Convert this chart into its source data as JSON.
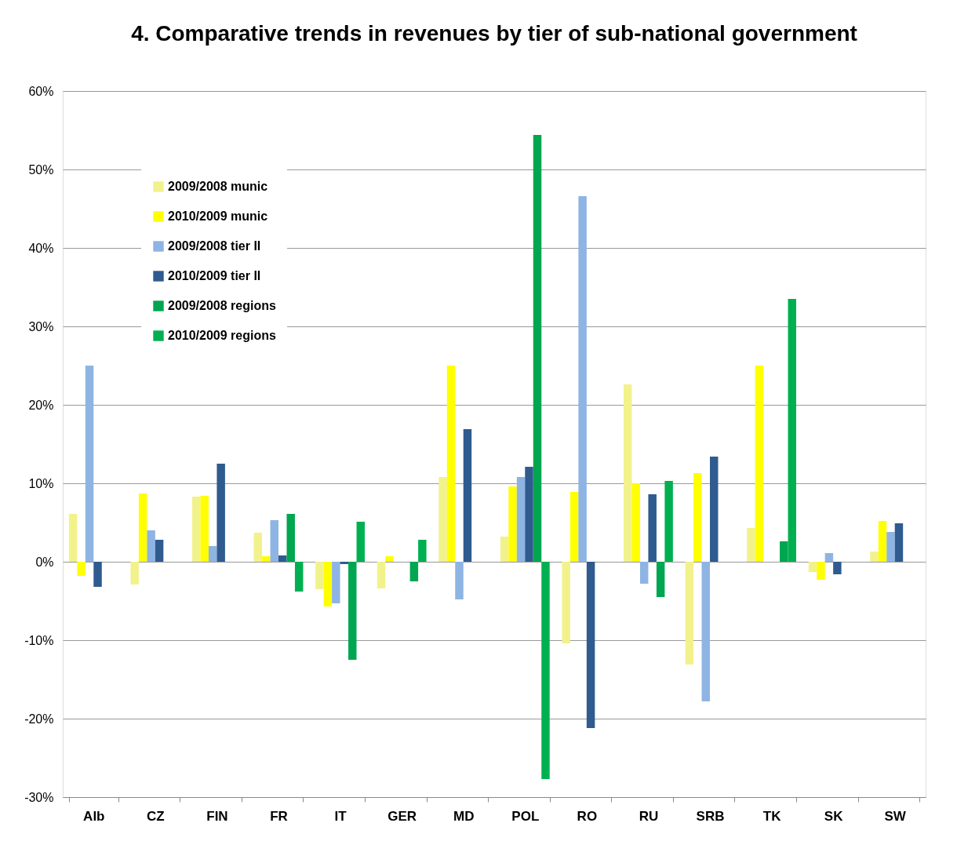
{
  "chart_data": {
    "type": "bar",
    "title": "4. Comparative trends in revenues by tier of sub-national government",
    "categories": [
      "Alb",
      "CZ",
      "FIN",
      "FR",
      "IT",
      "GER",
      "MD",
      "POL",
      "RO",
      "RU",
      "SRB",
      "TK",
      "SK",
      "SW"
    ],
    "series": [
      {
        "name": "2009/2008 munic",
        "color": "#f2f28c",
        "values": [
          6.1,
          -2.9,
          8.3,
          3.7,
          -3.5,
          -3.4,
          10.8,
          3.2,
          -10.4,
          22.6,
          -13.1,
          4.3,
          -1.3,
          1.3
        ]
      },
      {
        "name": "2010/2009 munic",
        "color": "#ffff00",
        "values": [
          -1.8,
          8.7,
          8.4,
          0.7,
          -5.7,
          0.7,
          25,
          9.6,
          8.9,
          10.0,
          11.3,
          25,
          -2.3,
          5.2
        ]
      },
      {
        "name": "2009/2008 tier II",
        "color": "#8eb4e3",
        "values": [
          25,
          4.0,
          2.0,
          5.3,
          -5.3,
          null,
          -4.8,
          10.8,
          46.6,
          -2.8,
          -17.8,
          null,
          1.1,
          3.8
        ]
      },
      {
        "name": "2010/2009 tier II",
        "color": "#2f5b8f",
        "values": [
          -3.2,
          2.8,
          12.5,
          0.8,
          -0.3,
          null,
          16.9,
          12.1,
          -21.2,
          8.6,
          13.4,
          null,
          -1.6,
          4.9
        ]
      },
      {
        "name": "2009/2008 regions",
        "color": "#00a650",
        "values": [
          null,
          null,
          null,
          6.1,
          -12.5,
          -2.5,
          null,
          54.4,
          null,
          -4.5,
          null,
          2.6,
          null,
          null
        ]
      },
      {
        "name": "2010/2009 regions",
        "color": "#00b050",
        "values": [
          null,
          null,
          null,
          -3.8,
          5.1,
          2.8,
          null,
          -27.7,
          null,
          10.3,
          null,
          33.5,
          null,
          null
        ]
      }
    ],
    "ylim": [
      -30,
      60
    ],
    "yticks": [
      {
        "value": -30,
        "label": "-30%"
      },
      {
        "value": -20,
        "label": "-20%"
      },
      {
        "value": -10,
        "label": "-10%"
      },
      {
        "value": 0,
        "label": "0%"
      },
      {
        "value": 10,
        "label": "10%"
      },
      {
        "value": 20,
        "label": "20%"
      },
      {
        "value": 30,
        "label": "30%"
      },
      {
        "value": 40,
        "label": "40%"
      },
      {
        "value": 50,
        "label": "50%"
      },
      {
        "value": 60,
        "label": "60%"
      }
    ],
    "grid": "y",
    "legend": "top left"
  }
}
